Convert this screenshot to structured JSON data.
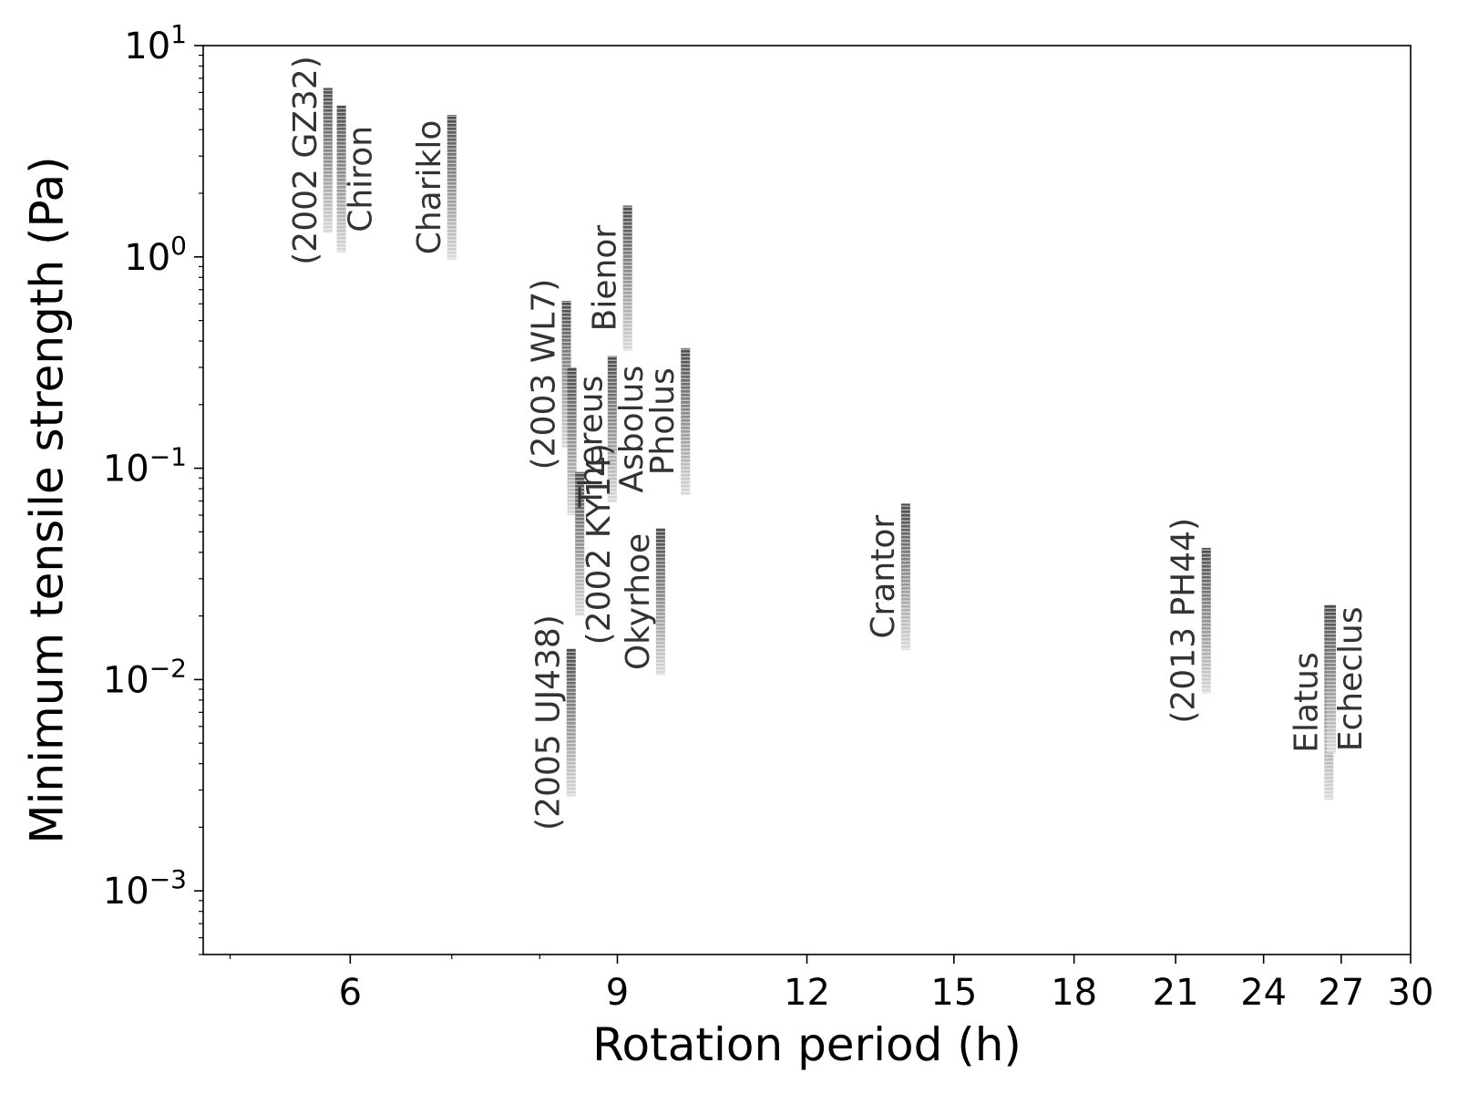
{
  "chart_data": {
    "type": "range-bar",
    "title": "",
    "xlabel": "Rotation period (h)",
    "ylabel": "Minimum tensile strength (Pa)",
    "xscale": "log",
    "yscale": "log",
    "xlim": [
      4.8,
      30
    ],
    "ylim": [
      0.0005,
      10
    ],
    "xticks": [
      {
        "value": 6,
        "label": "6"
      },
      {
        "value": 9,
        "label": "9"
      },
      {
        "value": 12,
        "label": "12"
      },
      {
        "value": 15,
        "label": "15"
      },
      {
        "value": 18,
        "label": "18"
      },
      {
        "value": 21,
        "label": "21"
      },
      {
        "value": 24,
        "label": "24"
      },
      {
        "value": 27,
        "label": "27"
      },
      {
        "value": 30,
        "label": "30"
      }
    ],
    "yticks": [
      {
        "value": 0.001,
        "base": "10",
        "exp": "−3"
      },
      {
        "value": 0.01,
        "base": "10",
        "exp": "−2"
      },
      {
        "value": 0.1,
        "base": "10",
        "exp": "−1"
      },
      {
        "value": 1,
        "base": "10",
        "exp": "0"
      },
      {
        "value": 10,
        "base": "10",
        "exp": "1"
      }
    ],
    "bar_color": "#555555",
    "label_color": "#333333",
    "series": [
      {
        "name": "(2002 GZ32)",
        "period": 5.8,
        "low": 1.3,
        "high": 6.3,
        "label_side": "left"
      },
      {
        "name": "Chiron",
        "period": 5.92,
        "low": 1.05,
        "high": 5.2,
        "label_side": "right"
      },
      {
        "name": "Chariklo",
        "period": 7.0,
        "low": 0.97,
        "high": 4.7,
        "label_side": "left"
      },
      {
        "name": "(2003 WL7)",
        "period": 8.33,
        "low": 0.125,
        "high": 0.62,
        "label_side": "left"
      },
      {
        "name": "Thereus",
        "period": 8.4,
        "low": 0.06,
        "high": 0.3,
        "label_side": "right"
      },
      {
        "name": "(2005 UJ438)",
        "period": 8.39,
        "low": 0.0028,
        "high": 0.014,
        "label_side": "left"
      },
      {
        "name": "(2002 KY14)",
        "period": 8.5,
        "low": 0.02,
        "high": 0.096,
        "label_side": "right"
      },
      {
        "name": "Asbolus",
        "period": 8.93,
        "low": 0.069,
        "high": 0.34,
        "label_side": "right"
      },
      {
        "name": "Bienor",
        "period": 9.14,
        "low": 0.36,
        "high": 1.75,
        "label_side": "left"
      },
      {
        "name": "Okyrhoe",
        "period": 9.61,
        "low": 0.0105,
        "high": 0.052,
        "label_side": "left"
      },
      {
        "name": "Pholus",
        "period": 9.98,
        "low": 0.075,
        "high": 0.37,
        "label_side": "left"
      },
      {
        "name": "Crantor",
        "period": 13.94,
        "low": 0.0138,
        "high": 0.068,
        "label_side": "left"
      },
      {
        "name": "(2013 PH44)",
        "period": 22.0,
        "low": 0.0086,
        "high": 0.042,
        "label_side": "left"
      },
      {
        "name": "Elatus",
        "period": 26.5,
        "low": 0.0027,
        "high": 0.0225,
        "label_side": "left"
      },
      {
        "name": "Echeclus",
        "period": 26.6,
        "low": 0.0045,
        "high": 0.0225,
        "label_side": "right"
      }
    ]
  }
}
